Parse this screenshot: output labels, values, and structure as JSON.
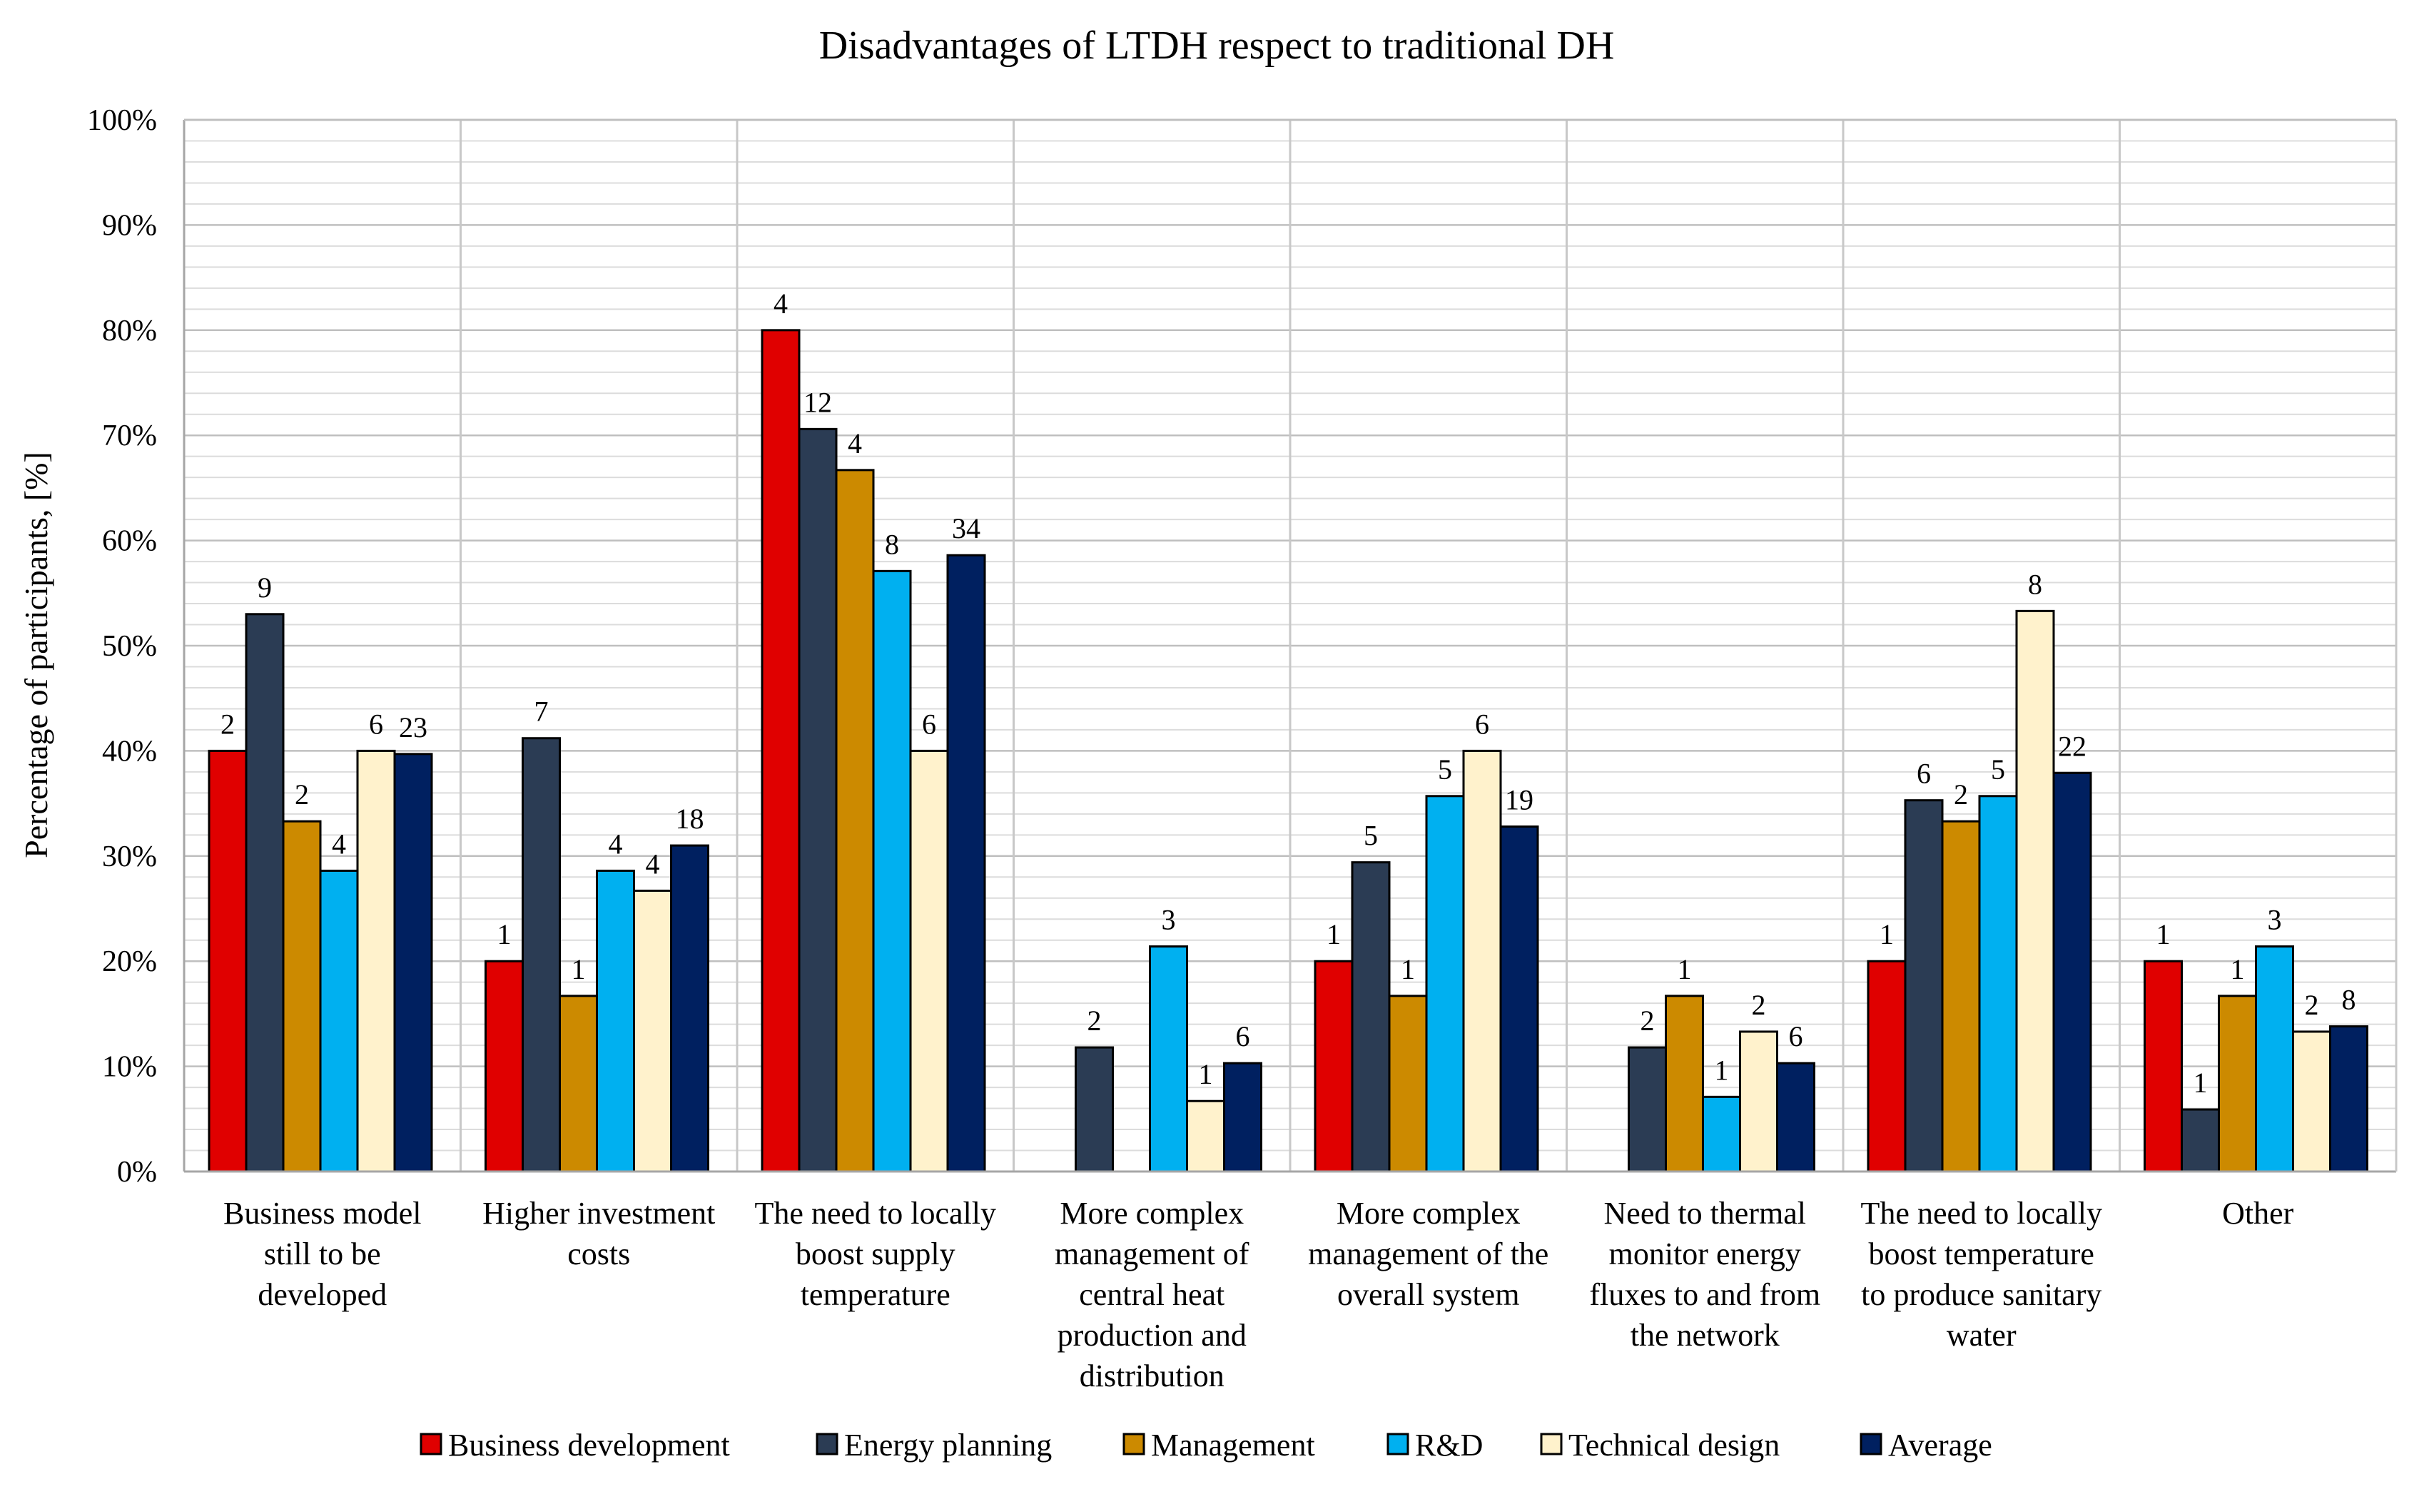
{
  "chart_data": {
    "type": "bar",
    "title": "Disadvantages of LTDH respect to traditional DH",
    "xlabel": "",
    "ylabel": "Percentage of participants, [%]",
    "ylim": [
      0,
      100
    ],
    "ytick_labels": [
      "0%",
      "10%",
      "20%",
      "30%",
      "40%",
      "50%",
      "60%",
      "70%",
      "80%",
      "90%",
      "100%"
    ],
    "grid": true,
    "legend_position": "bottom",
    "categories": [
      [
        "Business model",
        "still to be",
        "developed"
      ],
      [
        "Higher investment",
        "costs"
      ],
      [
        "The need to locally",
        "boost supply",
        "temperature"
      ],
      [
        "More complex",
        "management of",
        "central heat",
        "production and",
        "distribution"
      ],
      [
        "More complex",
        "management of the",
        "overall system"
      ],
      [
        "Need to thermal",
        "monitor energy",
        "fluxes to and from",
        "the network"
      ],
      [
        "The need to locally",
        "boost temperature",
        "to produce sanitary",
        "water"
      ],
      [
        "Other"
      ]
    ],
    "series": [
      {
        "name": "Business development",
        "color": "#e00000",
        "values": [
          40,
          20,
          80,
          0,
          20,
          0,
          20,
          20
        ],
        "labels": [
          "2",
          "1",
          "4",
          "",
          "1",
          "",
          "1",
          "1"
        ]
      },
      {
        "name": "Energy planning",
        "color": "#2b3c54",
        "values": [
          53,
          41.2,
          70.6,
          11.8,
          29.4,
          11.8,
          35.3,
          5.9
        ],
        "labels": [
          "9",
          "7",
          "12",
          "2",
          "5",
          "2",
          "6",
          "1"
        ]
      },
      {
        "name": "Management",
        "color": "#cc8a00",
        "values": [
          33.3,
          16.7,
          66.7,
          0,
          16.7,
          16.7,
          33.3,
          16.7
        ],
        "labels": [
          "2",
          "1",
          "4",
          "",
          "1",
          "1",
          "2",
          "1"
        ]
      },
      {
        "name": "R&D",
        "color": "#00b0f0",
        "values": [
          28.6,
          28.6,
          57.1,
          21.4,
          35.7,
          7.1,
          35.7,
          21.4
        ],
        "labels": [
          "4",
          "4",
          "8",
          "3",
          "5",
          "1",
          "5",
          "3"
        ]
      },
      {
        "name": "Technical design",
        "color": "#fff2cc",
        "values": [
          40,
          26.7,
          40,
          6.7,
          40,
          13.3,
          53.3,
          13.3
        ],
        "labels": [
          "6",
          "4",
          "6",
          "1",
          "6",
          "2",
          "8",
          "2"
        ]
      },
      {
        "name": "Average",
        "color": "#002060",
        "values": [
          39.7,
          31,
          58.6,
          10.3,
          32.8,
          10.3,
          37.9,
          13.8
        ],
        "labels": [
          "23",
          "18",
          "34",
          "6",
          "19",
          "6",
          "22",
          "8"
        ]
      }
    ]
  }
}
